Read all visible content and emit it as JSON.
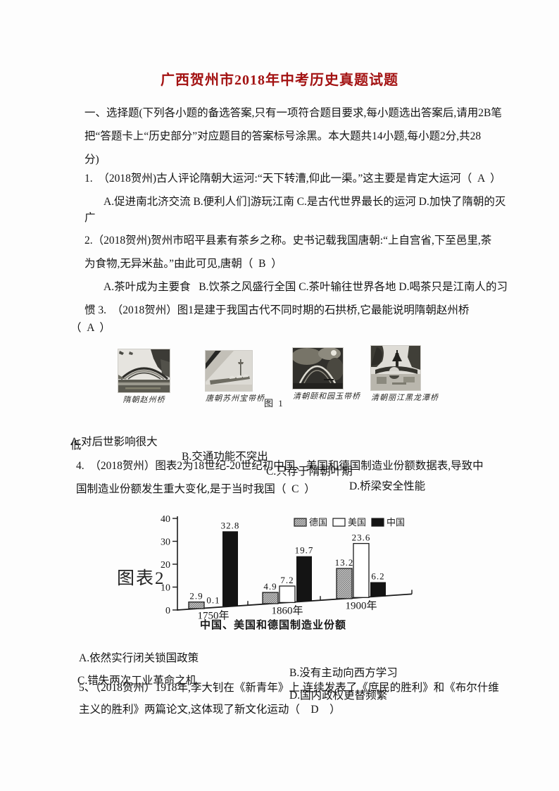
{
  "page": {
    "title": "广西贺州市2018年中考历史真题试题"
  },
  "intro": {
    "l1": "一、选择题(下列各小题的备选答案,只有一项符合题目要求,每小题选出答案后,请用2B笔",
    "l2": "把“答题卡上“历史部分”对应题目的答案标号涂黑。本大题共14小题,每小题2分,共28",
    "l3": "分)"
  },
  "q1": {
    "l1": "1.  （2018贺州)古人评论隋朝大运河:“天下转漕,仰此一渠。”这主要是肯定大运河（  A  ）",
    "l2": "A.促进南北济交流 B.便利人们]游玩江南 C.是古代世界最长的运河 D.加快了隋朝的灭",
    "l3": "广"
  },
  "q2": {
    "l1": "2.（2018贺州)贺州市昭平县素有茶乡之称。史书记载我国唐朝:“上自宫省,下至邑里,茶",
    "l2": "为食物,无异米盐。”由此可见,唐朝（  B  ）",
    "l3": "A.茶叶成为主要食   B.饮茶之风盛行全国 C.茶叶输往世界各地 D.喝茶只是江南人的习"
  },
  "q3": {
    "lead": "惯 3.  （2018贺州）图1是建于我国古代不同时期的石拱桥,它最能说明隋朝赵州桥",
    "answer": "（  A  ）",
    "figures": [
      "隋朝赵州桥",
      "唐朝苏州宝带桥",
      "清朝颐和园玉带桥",
      "清朝丽江黑龙潭桥"
    ],
    "fig_label": "图 1",
    "opt_a": "A.对后世影响很大",
    "opt_b": "B.交通功能不突出",
    "opt_c": "C.只存于隋朝叶期",
    "opt_d": "D.桥梁安全性能",
    "overflow": "低"
  },
  "q4": {
    "l1": "4.  （2018贺州）图表2为18世纪-20世纪初中国、美国和德国制造业份额数据表,导致中",
    "l2": "国制造业份额发生重大变化,是于当时我国（  C  ）",
    "opt_a": "A.依然实行闭关锁国政策",
    "opt_b": "B.没有主动向西方学习",
    "opt_c": "C.错失两次工业革命之机",
    "opt_d": "D.国内政权更替频繁"
  },
  "q5": {
    "l1": "5、（2018贺州）1918年,李大钊在《新青年》上,连续发表了《庶民的胜利》和《布尔什维",
    "l2": "主义的胜利》两篇论文,这体现了新文化运动（    D    ）"
  },
  "chart_data": {
    "type": "bar",
    "figure_label": "图表2",
    "title": "中国、美国和德国制造业份额",
    "categories": [
      "1750年",
      "1860年",
      "1900年"
    ],
    "series": [
      {
        "name": "德国",
        "style": "hatched",
        "values": [
          2.9,
          4.9,
          13.2
        ]
      },
      {
        "name": "美国",
        "style": "white",
        "values": [
          0.1,
          7.2,
          23.6
        ]
      },
      {
        "name": "中国",
        "style": "black",
        "values": [
          32.8,
          19.7,
          6.2
        ]
      }
    ],
    "ylim": [
      0,
      40
    ],
    "yticks": [
      0,
      10,
      20,
      30,
      40
    ],
    "legend_position": "top",
    "grid": false,
    "colors": {
      "hatched": "#c2c2c2",
      "white": "#ffffff",
      "black": "#141414",
      "axis": "#1b1b1b"
    }
  }
}
